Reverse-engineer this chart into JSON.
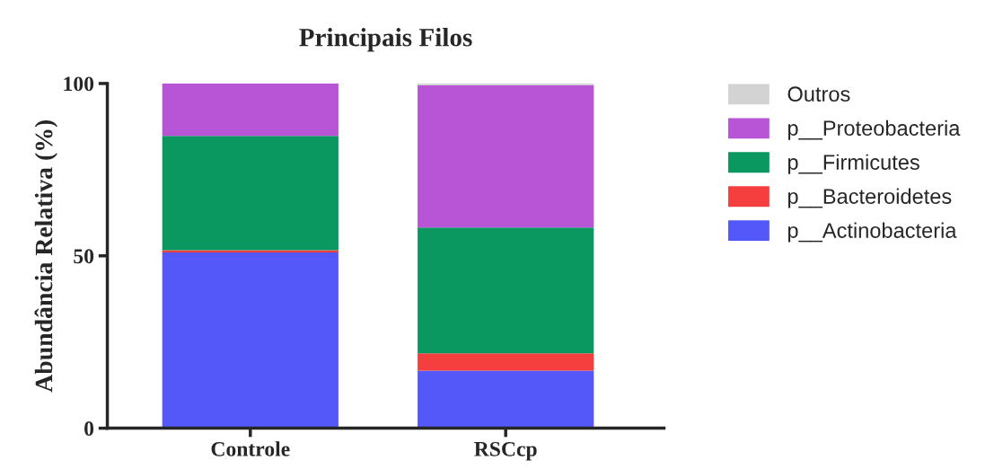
{
  "chart_data": {
    "type": "bar",
    "title": "Principais Filos",
    "ylabel": "Abundância Relativa (%)",
    "categories": [
      "Controle",
      "RSCcp"
    ],
    "stacked": true,
    "series": [
      {
        "name": "p__Actinobacteria",
        "color": "#5558f8",
        "values": [
          51.0,
          16.7
        ]
      },
      {
        "name": "p__Bacteroidetes",
        "color": "#f53f3f",
        "values": [
          0.6,
          5.0
        ]
      },
      {
        "name": "p__Firmicutes",
        "color": "#0b9760",
        "values": [
          33.2,
          36.5
        ]
      },
      {
        "name": "p__Proteobacteria",
        "color": "#b855d6",
        "values": [
          15.2,
          41.3
        ]
      },
      {
        "name": "Outros",
        "color": "#d3d3d3",
        "values": [
          0.0,
          0.5
        ]
      }
    ],
    "ylim": [
      0,
      100
    ],
    "yticks": [
      0,
      50,
      100
    ],
    "grid": false,
    "legend": "right"
  }
}
